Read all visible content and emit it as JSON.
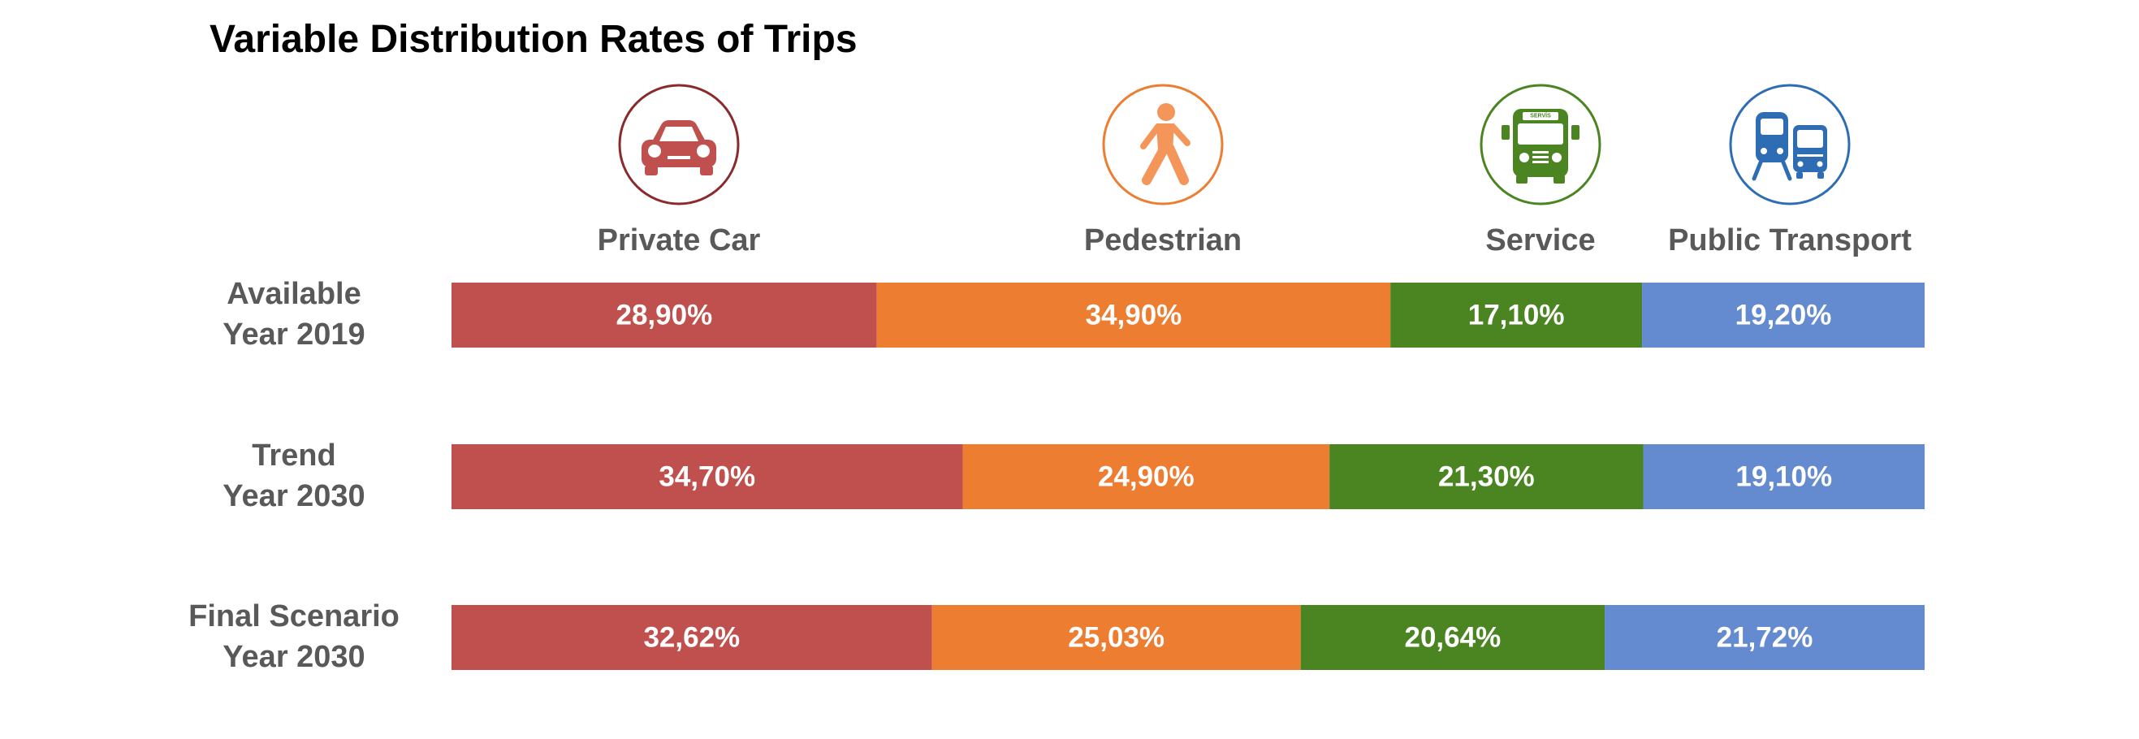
{
  "chart_data": {
    "type": "bar",
    "orientation": "horizontal",
    "stacked": true,
    "title": "Variable Distribution Rates of Trips",
    "categories": [
      [
        "Available",
        "Year 2019"
      ],
      [
        "Trend",
        "Year 2030"
      ],
      [
        "Final Scenario",
        "Year 2030"
      ]
    ],
    "series": [
      {
        "name": "Private Car",
        "color": "#C0504D",
        "icon": "car-icon",
        "values": [
          28.9,
          34.7,
          32.62
        ],
        "labels": [
          "28,90%",
          "34,70%",
          "32,62%"
        ]
      },
      {
        "name": "Pedestrian",
        "color": "#ED7D31",
        "icon": "pedestrian-icon",
        "values": [
          34.9,
          24.9,
          25.03
        ],
        "labels": [
          "34,90%",
          "24,90%",
          "25,03%"
        ]
      },
      {
        "name": "Service",
        "color": "#4A8522",
        "icon": "service-bus-icon",
        "values": [
          17.1,
          21.3,
          20.64
        ],
        "labels": [
          "17,10%",
          "21,30%",
          "20,64%"
        ]
      },
      {
        "name": "Public Transport",
        "color": "#648BCF",
        "icon": "public-transport-icon",
        "values": [
          19.2,
          19.1,
          21.72
        ],
        "labels": [
          "19,20%",
          "19,10%",
          "21,72%"
        ]
      }
    ],
    "icon_badge_text": "SERVİS",
    "xlim": [
      0,
      100
    ],
    "legend_position": "top",
    "grid": false
  }
}
